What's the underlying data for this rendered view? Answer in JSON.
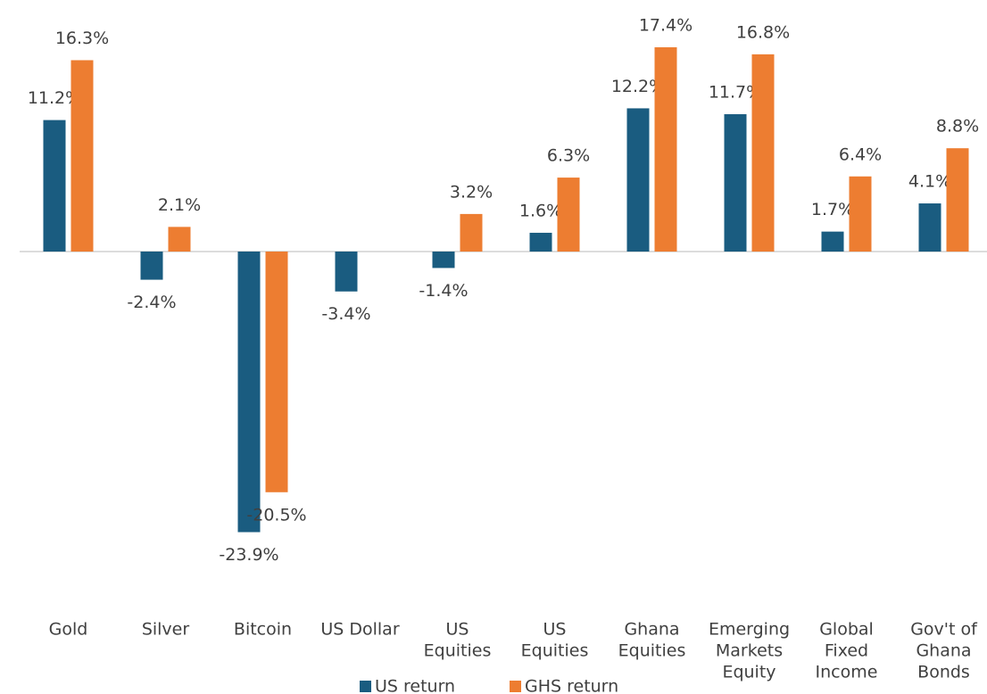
{
  "chart_data": {
    "type": "bar",
    "categories": [
      [
        "Gold"
      ],
      [
        "Silver"
      ],
      [
        "Bitcoin"
      ],
      [
        "US Dollar"
      ],
      [
        "US",
        "Equities"
      ],
      [
        "US",
        "Equities"
      ],
      [
        "Ghana",
        "Equities"
      ],
      [
        "Emerging",
        "Markets",
        "Equity"
      ],
      [
        "Global",
        "Fixed",
        "Income"
      ],
      [
        "Gov't of",
        "Ghana",
        "Bonds"
      ]
    ],
    "series": [
      {
        "name": "US return",
        "color": "#1a5c80",
        "values": [
          11.2,
          -2.4,
          -23.9,
          -3.4,
          -1.4,
          1.6,
          12.2,
          11.7,
          1.7,
          4.1
        ],
        "value_labels": [
          "11.2%",
          "-2.4%",
          "-23.9%",
          "-3.4%",
          "-1.4%",
          "1.6%",
          "12.2%",
          "11.7%",
          "1.7%",
          "4.1%"
        ]
      },
      {
        "name": "GHS return",
        "color": "#ed7d31",
        "values": [
          16.3,
          2.1,
          -20.5,
          null,
          3.2,
          6.3,
          17.4,
          16.8,
          6.4,
          8.8
        ],
        "value_labels": [
          "16.3%",
          "2.1%",
          "-20.5%",
          null,
          "3.2%",
          "6.3%",
          "17.4%",
          "16.8%",
          "6.4%",
          "8.8%"
        ]
      }
    ],
    "legend": "bottom"
  }
}
